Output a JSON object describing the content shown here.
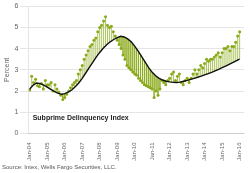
{
  "chart_data": {
    "type": "scatter",
    "ylabel": "Percent",
    "annotations": [
      {
        "text": "Subprime Delinquency Index",
        "x": 2,
        "y": 0.55
      }
    ],
    "source": "Source: Intex, Wells Fargo Securities, LLC.",
    "xlim": [
      -1,
      147
    ],
    "xticks": [
      {
        "value": 0,
        "label": "Jan-04"
      },
      {
        "value": 12,
        "label": "Jan-05"
      },
      {
        "value": 24,
        "label": "Jan-06"
      },
      {
        "value": 36,
        "label": "Jan-07"
      },
      {
        "value": 48,
        "label": "Jan-08"
      },
      {
        "value": 60,
        "label": "Jan-09"
      },
      {
        "value": 72,
        "label": "Jan-10"
      },
      {
        "value": 84,
        "label": "Jan-11"
      },
      {
        "value": 96,
        "label": "Jan-12"
      },
      {
        "value": 108,
        "label": "Jan-13"
      },
      {
        "value": 120,
        "label": "Jan-14"
      },
      {
        "value": 132,
        "label": "Jan-15"
      },
      {
        "value": 144,
        "label": "Jan-16"
      }
    ],
    "ylim": [
      0,
      6
    ],
    "yticks": [
      0,
      1,
      2,
      3,
      4,
      5,
      6
    ],
    "grid": "y",
    "series": [
      {
        "type": "scatter",
        "color": "#8aaa1a",
        "x": [
          0,
          1.3333,
          2.6667,
          4,
          5.3333,
          6.6667,
          8,
          9.3333,
          10.6667,
          12,
          13.3333,
          14.6667,
          16,
          17.3333,
          18.6667,
          20,
          21.3333,
          22.6667,
          24,
          25.3333,
          26.6667,
          28,
          29.3333,
          30.6667,
          32,
          33.3333,
          34.6667,
          36,
          37.3333,
          38.6667,
          40,
          41.3333,
          42.6667,
          44,
          45.3333,
          46.6667,
          48,
          49.3333,
          50.6667,
          52,
          53.3333,
          54.6667,
          56,
          57.3333,
          58.6667,
          60,
          61.3333,
          62.6667,
          64,
          65.3333,
          66.6667,
          68,
          69.3333,
          70.6667,
          72,
          73.3333,
          74.6667,
          76,
          77.3333,
          78.6667,
          80,
          81.3333,
          82.6667,
          84,
          85.3333,
          86.6667,
          88,
          89.3333,
          90.6667,
          92,
          93.3333,
          94.6667,
          96,
          97.3333,
          98.6667,
          100,
          101.3333,
          102.6667,
          104,
          105.3333,
          106.6667,
          108,
          109.3333,
          110.6667,
          112,
          113.3333,
          114.6667,
          116,
          117.3333,
          118.6667,
          120,
          121.3333,
          122.6667,
          124,
          125.3333,
          126.6667,
          128,
          129.3333,
          130.6667,
          132,
          133.3333,
          134.6667,
          136,
          137.3333,
          138.6667,
          140,
          141.3333,
          142.6667,
          144
        ],
        "values": [
          2.05,
          2.7,
          2.4,
          2.55,
          2.25,
          2.2,
          2.35,
          2.1,
          2.5,
          2.3,
          2.3,
          2.4,
          2.0,
          2.3,
          2.1,
          1.95,
          1.8,
          1.6,
          1.7,
          1.85,
          2.0,
          2.15,
          2.3,
          2.4,
          2.5,
          2.8,
          3.0,
          3.2,
          3.5,
          3.7,
          3.9,
          4.1,
          4.2,
          4.4,
          4.5,
          4.8,
          5.0,
          5.1,
          5.3,
          5.5,
          5.1,
          5.0,
          5.05,
          4.8,
          4.6,
          4.4,
          4.2,
          4.0,
          3.7,
          3.5,
          3.2,
          3.1,
          3.0,
          2.9,
          2.8,
          2.75,
          2.6,
          2.5,
          2.4,
          2.3,
          2.25,
          2.2,
          2.15,
          2.1,
          1.7,
          2.0,
          1.8,
          2.1,
          2.5,
          2.4,
          2.3,
          2.5,
          2.6,
          2.8,
          2.9,
          2.5,
          2.7,
          2.8,
          2.4,
          2.3,
          2.5,
          2.6,
          2.4,
          2.6,
          2.8,
          3.0,
          2.8,
          3.0,
          3.2,
          3.1,
          3.3,
          3.5,
          3.4,
          3.5,
          3.5,
          3.6,
          3.7,
          3.8,
          3.6,
          3.8,
          4.0,
          4.0,
          4.1,
          3.9,
          4.1,
          4.1,
          4.3,
          4.6,
          4.8
        ],
        "stem_from": [
          2.1,
          2.2,
          2.291,
          2.347,
          2.373,
          2.357,
          2.327,
          2.288,
          2.236,
          2.18,
          2.124,
          2.069,
          2.013,
          1.962,
          1.918,
          1.883,
          1.856,
          1.863,
          1.88,
          1.919,
          1.961,
          2.017,
          2.083,
          2.167,
          2.26,
          2.36,
          2.478,
          2.6,
          2.739,
          2.878,
          3.017,
          3.156,
          3.294,
          3.433,
          3.572,
          3.698,
          3.82,
          3.931,
          4.038,
          4.127,
          4.211,
          4.289,
          4.357,
          4.418,
          4.47,
          4.52,
          4.553,
          4.577,
          4.56,
          4.53,
          4.48,
          4.413,
          4.336,
          4.231,
          4.12,
          3.987,
          3.851,
          3.707,
          3.562,
          3.418,
          3.273,
          3.129,
          3.002,
          2.88,
          2.791,
          2.707,
          2.64,
          2.582,
          2.538,
          2.5,
          2.467,
          2.447,
          2.43,
          2.419,
          2.409,
          2.403,
          2.404,
          2.416,
          2.433,
          2.456,
          2.478,
          2.5,
          2.528,
          2.556,
          2.583,
          2.611,
          2.639,
          2.667,
          2.694,
          2.727,
          2.76,
          2.793,
          2.827,
          2.86,
          2.896,
          2.934,
          2.973,
          3.012,
          3.056,
          3.1,
          3.144,
          3.189,
          3.233,
          3.278,
          3.322,
          3.367,
          3.411,
          3.456,
          3.5
        ]
      },
      {
        "type": "line",
        "color": "#111111",
        "x": [
          0,
          2.4,
          4.8,
          7.2,
          9.6,
          12,
          14.4,
          16.8,
          19.2,
          21.6,
          24,
          26.4,
          28.8,
          31.2,
          33.6,
          36,
          38.4,
          40.8,
          43.2,
          45.6,
          48,
          50.4,
          52.8,
          55.2,
          57.6,
          60,
          62.4,
          64.8,
          67.2,
          69.6,
          72,
          74.4,
          76.8,
          79.2,
          81.6,
          84,
          86.4,
          88.8,
          91.2,
          93.6,
          96,
          98.4,
          100.8,
          103.2,
          105.6,
          108,
          110.4,
          112.8,
          115.2,
          117.6,
          120,
          122.4,
          124.8,
          127.2,
          129.6,
          132,
          134.4,
          136.8,
          139.2,
          141.6,
          144
        ],
        "values": [
          2.1,
          2.28,
          2.38,
          2.35,
          2.28,
          2.18,
          2.08,
          1.98,
          1.9,
          1.85,
          1.88,
          1.95,
          2.05,
          2.2,
          2.38,
          2.6,
          2.85,
          3.1,
          3.35,
          3.6,
          3.82,
          4.02,
          4.18,
          4.32,
          4.43,
          4.52,
          4.58,
          4.55,
          4.46,
          4.32,
          4.12,
          3.88,
          3.62,
          3.36,
          3.1,
          2.88,
          2.72,
          2.6,
          2.52,
          2.46,
          2.43,
          2.41,
          2.4,
          2.42,
          2.46,
          2.5,
          2.55,
          2.6,
          2.65,
          2.7,
          2.76,
          2.82,
          2.88,
          2.95,
          3.02,
          3.1,
          3.18,
          3.26,
          3.34,
          3.42,
          3.5
        ]
      }
    ]
  }
}
